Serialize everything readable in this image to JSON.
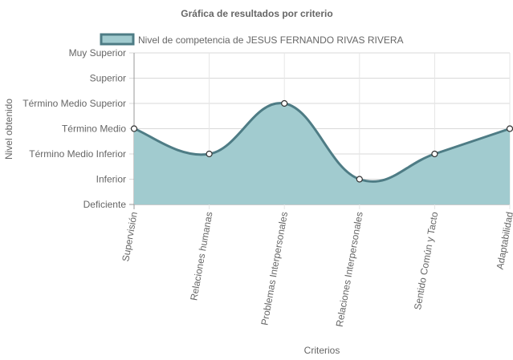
{
  "chart_data": {
    "type": "area",
    "title": "Gráfica de resultados por criterio",
    "xlabel": "Criterios",
    "ylabel": "Nivel obtenido",
    "categories": [
      "Supervisión",
      "Relaciones humanas",
      "Problemas Interpersonales",
      "Relaciones Interpersonales",
      "Sentido Común y Tacto",
      "Adaptabilidad"
    ],
    "y_levels": [
      "Deficiente",
      "Inferior",
      "Término Medio Inferior",
      "Término Medio",
      "Término Medio Superior",
      "Superior",
      "Muy Superior"
    ],
    "ylim": [
      0,
      6
    ],
    "series": [
      {
        "name": "Nivel de competencia de JESUS FERNANDO RIVAS RIVERA",
        "values": [
          3,
          2,
          4,
          1,
          2,
          3
        ],
        "line_color": "#4e7c85",
        "fill_color": "#a1cbcf"
      }
    ],
    "grid": true,
    "legend": "top"
  }
}
